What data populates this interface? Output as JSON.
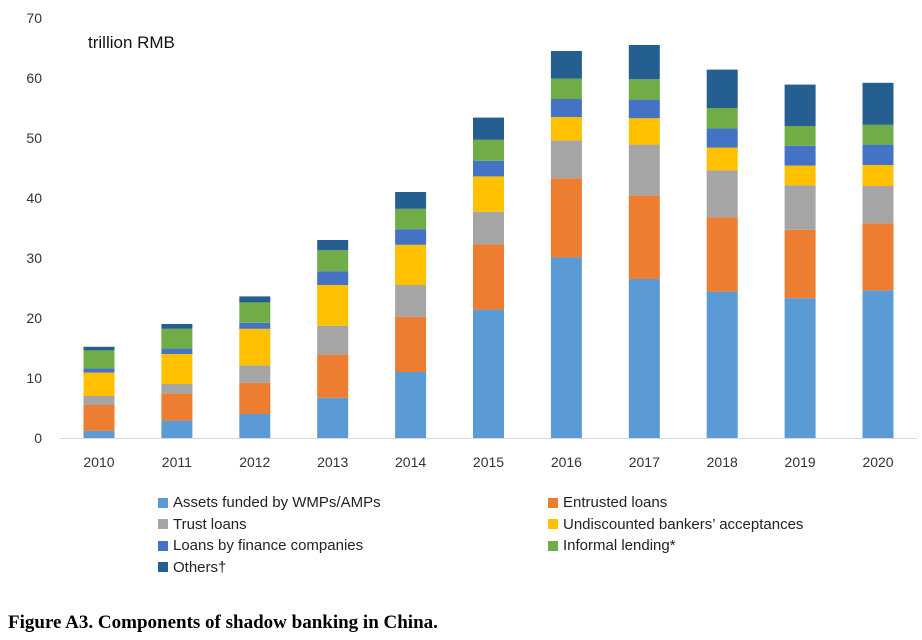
{
  "chart_data": {
    "type": "bar",
    "stacked": true,
    "unit_label": "trillion RMB",
    "categories": [
      "2010",
      "2011",
      "2012",
      "2013",
      "2014",
      "2015",
      "2016",
      "2017",
      "2018",
      "2019",
      "2020"
    ],
    "ylim": [
      0,
      70
    ],
    "yticks": [
      0,
      10,
      20,
      30,
      40,
      50,
      60,
      70
    ],
    "grid": false,
    "legend_position": "bottom",
    "series": [
      {
        "name": "Assets funded by WMPs/AMPs",
        "color": "#5B9BD5",
        "values": [
          1.2,
          2.9,
          4.0,
          6.7,
          11.0,
          21.4,
          30.1,
          26.5,
          24.4,
          23.3,
          24.6
        ]
      },
      {
        "name": "Entrusted loans",
        "color": "#ED7D31",
        "values": [
          4.3,
          4.5,
          5.2,
          7.2,
          9.2,
          10.9,
          13.2,
          13.9,
          12.4,
          11.4,
          11.2
        ]
      },
      {
        "name": "Trust loans",
        "color": "#A5A5A5",
        "values": [
          1.5,
          1.6,
          2.9,
          4.8,
          5.3,
          5.4,
          6.3,
          8.5,
          7.8,
          7.4,
          6.2
        ]
      },
      {
        "name": "Undiscounted bankers’ acceptances",
        "color": "#FFC000",
        "values": [
          3.9,
          5.0,
          6.1,
          6.8,
          6.7,
          5.9,
          3.9,
          4.4,
          3.8,
          3.3,
          3.5
        ]
      },
      {
        "name": "Loans by finance companies",
        "color": "#4472C4",
        "values": [
          0.7,
          0.9,
          1.0,
          2.3,
          2.6,
          2.6,
          3.0,
          3.1,
          3.2,
          3.3,
          3.4
        ]
      },
      {
        "name": "Informal lending*",
        "color": "#70AD47",
        "values": [
          3.0,
          3.3,
          3.4,
          3.5,
          3.4,
          3.5,
          3.4,
          3.4,
          3.4,
          3.3,
          3.3
        ]
      },
      {
        "name": "Others†",
        "color": "#255E91",
        "values": [
          0.6,
          0.8,
          1.0,
          1.7,
          2.8,
          3.7,
          4.6,
          5.7,
          6.4,
          6.9,
          7.0
        ]
      }
    ]
  },
  "caption": "Figure A3. Components of shadow banking in China."
}
